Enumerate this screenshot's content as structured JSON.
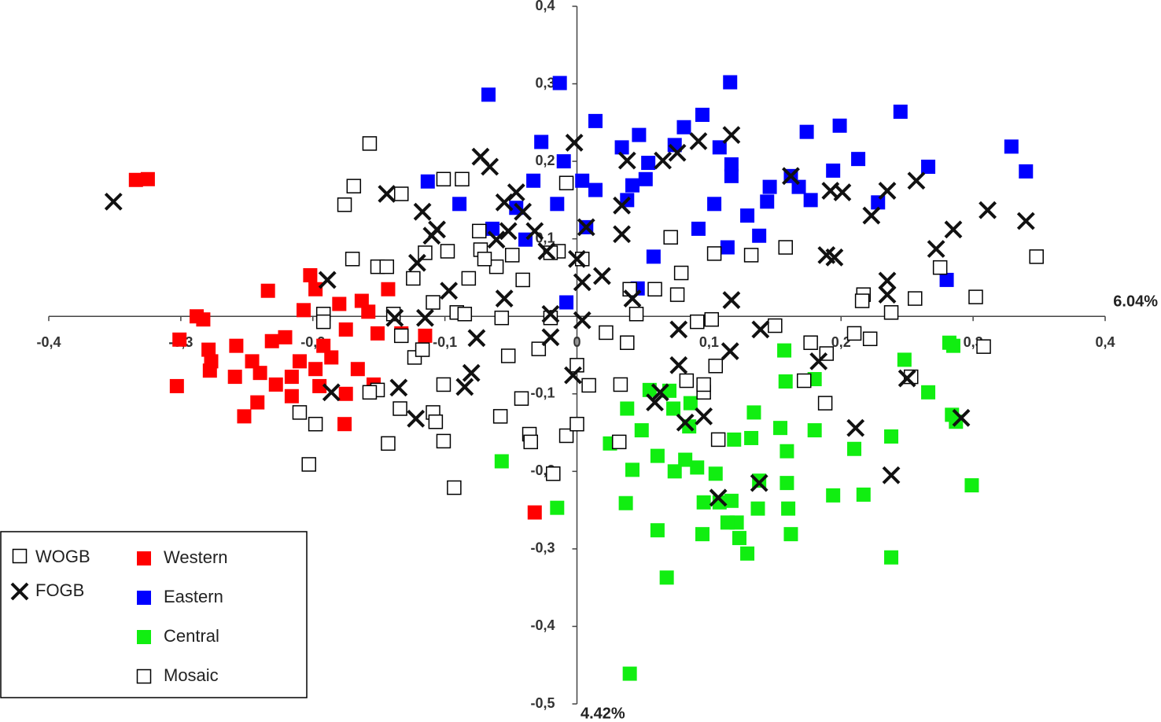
{
  "chart_data": {
    "type": "scatter",
    "xlim": [
      -0.4,
      0.4
    ],
    "ylim": [
      -0.5,
      0.4
    ],
    "xticks": [
      {
        "value": -0.4,
        "label": "-0,4"
      },
      {
        "value": -0.3,
        "label": "-0,3"
      },
      {
        "value": -0.2,
        "label": "-0,2"
      },
      {
        "value": -0.1,
        "label": "-0,1"
      },
      0,
      {
        "value": 0.1,
        "label": "0,1"
      },
      {
        "value": 0.2,
        "label": "0,2"
      },
      {
        "value": 0.3,
        "label": "0,3"
      },
      {
        "value": 0.4,
        "label": "0,4"
      }
    ],
    "yticks": [
      {
        "value": -0.5,
        "label": "-0,5"
      },
      {
        "value": -0.4,
        "label": "-0,4"
      },
      {
        "value": -0.3,
        "label": "-0,3"
      },
      {
        "value": -0.2,
        "label": "-0,2"
      },
      {
        "value": -0.1,
        "label": "-0,1"
      },
      0,
      {
        "value": 0.1,
        "label": "0,1"
      },
      {
        "value": 0.2,
        "label": "0,2"
      },
      {
        "value": 0.3,
        "label": "0,3"
      },
      {
        "value": 0.4,
        "label": "0,4"
      }
    ],
    "xlabel": "6.04%",
    "ylabel": "4.42%",
    "shape_legend": [
      {
        "label": "WOGB",
        "marker": "open-square"
      }
    ],
    "series": [
      {
        "name": "Western",
        "color": "#ff0000",
        "marker": "square",
        "x": [
          -0.334,
          -0.325,
          -0.288,
          -0.283,
          -0.301,
          -0.279,
          -0.277,
          -0.278,
          -0.303,
          -0.259,
          -0.252,
          -0.242,
          -0.234,
          -0.202,
          -0.198,
          -0.207,
          -0.18,
          -0.163,
          -0.143,
          -0.158,
          -0.175,
          -0.192,
          -0.186,
          -0.198,
          -0.216,
          -0.228,
          -0.216,
          -0.195,
          -0.175,
          -0.176,
          -0.154,
          -0.166,
          -0.151,
          -0.133,
          -0.115,
          -0.258,
          -0.246,
          -0.231,
          -0.21,
          -0.032,
          -0.221,
          -0.24
        ],
        "values": [
          0.176,
          0.177,
          0,
          -0.004,
          -0.03,
          -0.043,
          -0.058,
          -0.07,
          -0.09,
          -0.078,
          -0.129,
          -0.111,
          0.033,
          0.053,
          0.035,
          0.008,
          0.016,
          0.02,
          0.035,
          0.006,
          -0.017,
          -0.038,
          -0.053,
          -0.068,
          -0.078,
          -0.088,
          -0.103,
          -0.09,
          -0.1,
          -0.139,
          -0.088,
          -0.068,
          -0.022,
          -0.022,
          -0.025,
          -0.038,
          -0.058,
          -0.032,
          -0.058,
          -0.253,
          -0.027,
          -0.073
        ]
      },
      {
        "name": "Eastern",
        "color": "#0000ff",
        "marker": "square",
        "x": [
          -0.067,
          -0.013,
          0.116,
          0.014,
          -0.027,
          -0.01,
          0.245,
          0.329,
          0.34,
          0.266,
          0.213,
          0.199,
          0.174,
          0.095,
          0.081,
          0.047,
          0.034,
          0.054,
          0.052,
          0.042,
          0.038,
          0.108,
          0.117,
          0.117,
          0.104,
          0.129,
          0.138,
          0.144,
          0.146,
          0.162,
          0.177,
          0.194,
          0.228,
          0.28,
          0.092,
          0.114,
          0.058,
          0.046,
          -0.008,
          -0.113,
          -0.089,
          -0.064,
          -0.046,
          -0.039,
          -0.033,
          -0.015,
          0.004,
          0.014,
          0.007,
          0.074,
          0.168
        ],
        "values": [
          0.286,
          0.301,
          0.302,
          0.252,
          0.225,
          0.2,
          0.264,
          0.219,
          0.187,
          0.193,
          0.203,
          0.246,
          0.238,
          0.26,
          0.244,
          0.234,
          0.218,
          0.198,
          0.177,
          0.169,
          0.15,
          0.218,
          0.196,
          0.181,
          0.145,
          0.13,
          0.104,
          0.148,
          0.167,
          0.181,
          0.15,
          0.188,
          0.147,
          0.047,
          0.113,
          0.089,
          0.077,
          0.036,
          0.018,
          0.174,
          0.145,
          0.113,
          0.14,
          0.099,
          0.175,
          0.145,
          0.175,
          0.163,
          0.115,
          0.221,
          0.167
        ]
      },
      {
        "name": "Central",
        "color": "#11ee11",
        "marker": "square",
        "x": [
          0.157,
          0.248,
          0.282,
          0.285,
          0.18,
          0.266,
          0.284,
          0.287,
          0.299,
          0.238,
          0.238,
          0.217,
          0.194,
          0.21,
          0.18,
          0.154,
          0.159,
          0.159,
          0.16,
          0.162,
          0.134,
          0.132,
          0.138,
          0.137,
          0.129,
          0.121,
          0.123,
          0.114,
          0.117,
          0.119,
          0.107,
          0.105,
          0.108,
          0.096,
          0.095,
          0.091,
          0.082,
          0.086,
          0.073,
          0.07,
          0.061,
          0.061,
          0.068,
          0.074,
          0.055,
          0.049,
          0.042,
          0.038,
          0.037,
          0.04,
          0.025,
          -0.057,
          -0.015,
          0.085,
          0.158
        ],
        "values": [
          -0.044,
          -0.056,
          -0.034,
          -0.038,
          -0.081,
          -0.098,
          -0.127,
          -0.136,
          -0.218,
          -0.311,
          -0.155,
          -0.23,
          -0.231,
          -0.171,
          -0.147,
          -0.144,
          -0.174,
          -0.215,
          -0.248,
          -0.281,
          -0.124,
          -0.157,
          -0.212,
          -0.248,
          -0.306,
          -0.266,
          -0.286,
          -0.266,
          -0.238,
          -0.159,
          -0.159,
          -0.203,
          -0.24,
          -0.24,
          -0.281,
          -0.195,
          -0.185,
          -0.112,
          -0.119,
          -0.096,
          -0.18,
          -0.276,
          -0.337,
          -0.2,
          -0.095,
          -0.147,
          -0.198,
          -0.119,
          -0.241,
          -0.461,
          -0.164,
          -0.187,
          -0.247,
          -0.142,
          -0.084
        ]
      },
      {
        "name": "Mosaic",
        "color": "#ffffff",
        "marker": "open-square",
        "x": [
          -0.157,
          -0.169,
          -0.176,
          -0.133,
          -0.101,
          -0.087,
          -0.074,
          -0.098,
          -0.115,
          -0.17,
          -0.151,
          -0.144,
          -0.124,
          -0.082,
          -0.073,
          -0.049,
          -0.061,
          -0.041,
          -0.091,
          -0.109,
          -0.192,
          -0.192,
          -0.139,
          -0.133,
          -0.151,
          -0.157,
          -0.21,
          -0.198,
          -0.203,
          -0.143,
          -0.134,
          -0.109,
          -0.107,
          -0.101,
          -0.093,
          -0.101,
          -0.058,
          -0.052,
          -0.042,
          -0.036,
          -0.035,
          -0.029,
          -0.02,
          -0.057,
          -0.018,
          -0.008,
          0,
          0.009,
          0,
          -0.008,
          -0.014,
          -0.02,
          0.004,
          0.033,
          0.022,
          0.038,
          0.045,
          0.032,
          0.071,
          0.079,
          0.076,
          0.059,
          0.091,
          0.102,
          0.105,
          0.083,
          0.096,
          0.096,
          0.107,
          0.104,
          0.132,
          0.15,
          0.158,
          0.177,
          0.189,
          0.172,
          0.188,
          0.21,
          0.222,
          0.217,
          0.216,
          0.238,
          0.256,
          0.275,
          0.302,
          0.308,
          0.348,
          0.253,
          0.04,
          -0.085,
          -0.123,
          -0.117,
          -0.07
        ],
        "values": [
          0.223,
          0.168,
          0.144,
          0.158,
          0.177,
          0.177,
          0.11,
          0.084,
          0.082,
          0.074,
          0.064,
          0.064,
          0.049,
          0.049,
          0.086,
          0.079,
          0.064,
          0.047,
          0.005,
          0.018,
          0.003,
          -0.007,
          0.003,
          -0.025,
          -0.095,
          -0.098,
          -0.124,
          -0.139,
          -0.191,
          -0.164,
          -0.119,
          -0.124,
          -0.136,
          -0.161,
          -0.221,
          -0.088,
          -0.129,
          -0.051,
          -0.106,
          -0.152,
          -0.162,
          -0.042,
          -0.002,
          -0.002,
          -0.203,
          -0.154,
          -0.139,
          -0.089,
          -0.063,
          0.172,
          0.084,
          0.082,
          0.074,
          -0.088,
          -0.021,
          -0.034,
          0.003,
          -0.162,
          0.102,
          0.056,
          0.028,
          0.035,
          -0.007,
          -0.004,
          -0.064,
          -0.083,
          -0.098,
          -0.088,
          -0.159,
          0.081,
          0.079,
          -0.012,
          0.089,
          -0.034,
          -0.048,
          -0.083,
          -0.112,
          -0.022,
          -0.029,
          0.028,
          0.02,
          0.005,
          0.023,
          0.063,
          0.025,
          -0.039,
          0.077,
          -0.078,
          0.035,
          0.003,
          -0.053,
          -0.043,
          0.074
        ]
      },
      {
        "name": "FOGB",
        "color": "#111111",
        "marker": "x",
        "x": [
          -0.351,
          -0.144,
          -0.117,
          -0.11,
          -0.121,
          -0.106,
          -0.073,
          -0.066,
          -0.055,
          -0.046,
          -0.061,
          -0.052,
          -0.041,
          -0.032,
          -0.023,
          -0.002,
          0.007,
          0,
          0.004,
          0.019,
          0.034,
          0.038,
          0.034,
          0.042,
          0.065,
          0.076,
          0.092,
          0.117,
          0.162,
          0.192,
          0.201,
          0.223,
          0.235,
          0.257,
          0.311,
          0.34,
          0.285,
          0.272,
          0.189,
          0.195,
          0.235,
          0.235,
          0.117,
          0.139,
          0.116,
          0.077,
          0.077,
          0.082,
          0.096,
          0.107,
          0.138,
          0.183,
          0.211,
          0.238,
          0.25,
          0.291,
          0.063,
          0.059,
          -0.02,
          0.004,
          -0.003,
          -0.02,
          -0.076,
          -0.08,
          -0.085,
          -0.122,
          -0.135,
          -0.115,
          -0.138,
          -0.189,
          -0.186,
          -0.097,
          -0.055
        ],
        "values": [
          0.148,
          0.158,
          0.135,
          0.104,
          0.069,
          0.112,
          0.206,
          0.193,
          0.147,
          0.16,
          0.099,
          0.11,
          0.135,
          0.11,
          0.084,
          0.224,
          0.115,
          0.074,
          0.044,
          0.052,
          0.106,
          0.201,
          0.143,
          0.023,
          0.201,
          0.211,
          0.226,
          0.234,
          0.181,
          0.162,
          0.16,
          0.13,
          0.162,
          0.175,
          0.137,
          0.123,
          0.112,
          0.087,
          0.079,
          0.076,
          0.046,
          0.028,
          0.021,
          -0.017,
          -0.045,
          -0.017,
          -0.063,
          -0.137,
          -0.129,
          -0.234,
          -0.215,
          -0.058,
          -0.144,
          -0.205,
          -0.08,
          -0.131,
          -0.098,
          -0.111,
          0.003,
          -0.005,
          -0.076,
          -0.027,
          -0.028,
          -0.073,
          -0.091,
          -0.132,
          -0.092,
          -0.002,
          -0.002,
          0.047,
          -0.098,
          0.033,
          0.023
        ]
      }
    ]
  }
}
